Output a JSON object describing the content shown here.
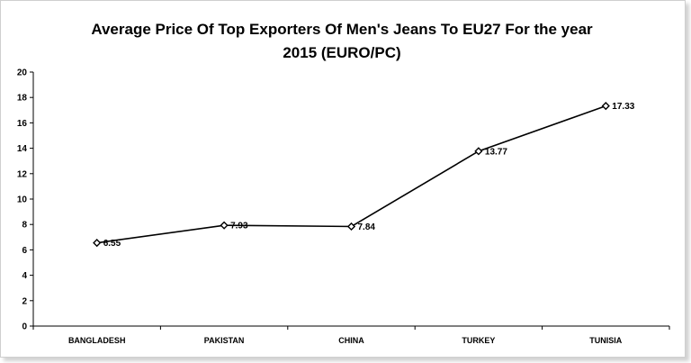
{
  "colors": {
    "line": "#000000",
    "marker_fill": "#ffffff",
    "axis": "#000000"
  },
  "chart_data": {
    "type": "line",
    "title_line1": "Average Price Of Top Exporters Of Men's Jeans To EU27 For the year",
    "title_line2": "2015 (EURO/PC)",
    "categories": [
      "BANGLADESH",
      "PAKISTAN",
      "CHINA",
      "TURKEY",
      "TUNISIA"
    ],
    "series": [
      {
        "values": [
          6.55,
          7.93,
          7.84,
          13.77,
          17.33
        ]
      }
    ],
    "data_labels": [
      "6.55",
      "7.93",
      "7.84",
      "13.77",
      "17.33"
    ],
    "ylim": [
      0,
      20
    ],
    "yticks": [
      "0",
      "2",
      "4",
      "6",
      "8",
      "10",
      "12",
      "14",
      "16",
      "18",
      "20"
    ],
    "grid": false,
    "legend": "none",
    "marker": "diamond"
  }
}
